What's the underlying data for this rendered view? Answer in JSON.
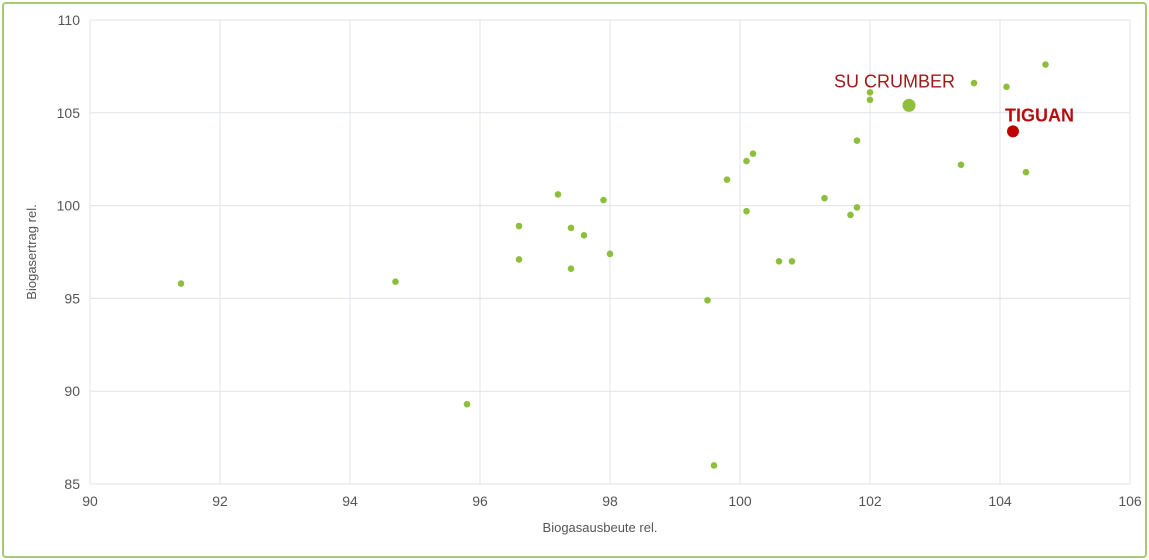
{
  "chart_data": {
    "type": "scatter",
    "title": "",
    "xlabel": "Biogasausbeute rel.",
    "ylabel": "Biogasertrag rel.",
    "xlim": [
      90,
      106
    ],
    "ylim": [
      85,
      110
    ],
    "xticks": [
      "90",
      "92",
      "94",
      "96",
      "98",
      "100",
      "102",
      "104",
      "106"
    ],
    "yticks": [
      "85",
      "90",
      "95",
      "100",
      "105",
      "110"
    ],
    "grid": true,
    "colors": {
      "points": "#8dbf3c",
      "highlight": "#c00000",
      "grid": "#dfe3e8",
      "frame": "#a6c877"
    },
    "series": [
      {
        "points": [
          [
            91.4,
            95.8
          ],
          [
            94.7,
            95.9
          ],
          [
            95.8,
            89.3
          ],
          [
            96.6,
            98.9
          ],
          [
            96.6,
            97.1
          ],
          [
            97.2,
            100.6
          ],
          [
            97.4,
            98.8
          ],
          [
            97.4,
            96.6
          ],
          [
            97.6,
            98.4
          ],
          [
            97.9,
            100.3
          ],
          [
            98.0,
            97.4
          ],
          [
            99.5,
            94.9
          ],
          [
            99.6,
            86.0
          ],
          [
            99.8,
            101.4
          ],
          [
            100.1,
            102.4
          ],
          [
            100.1,
            99.7
          ],
          [
            100.2,
            102.8
          ],
          [
            100.6,
            97.0
          ],
          [
            100.8,
            97.0
          ],
          [
            101.3,
            100.4
          ],
          [
            101.7,
            99.5
          ],
          [
            101.8,
            99.9
          ],
          [
            101.8,
            103.5
          ],
          [
            102.0,
            105.7
          ],
          [
            102.0,
            106.1
          ],
          [
            103.4,
            102.2
          ],
          [
            103.6,
            106.6
          ],
          [
            104.1,
            106.4
          ],
          [
            104.4,
            101.8
          ],
          [
            104.7,
            107.6
          ]
        ]
      }
    ],
    "highlights": [
      {
        "label": "SU CRUMBER",
        "x": 102.6,
        "y": 105.4,
        "color": "#8dbf3c",
        "style": "normal"
      },
      {
        "label": "TIGUAN",
        "x": 104.2,
        "y": 104.0,
        "color": "#c00000",
        "style": "bold"
      }
    ]
  }
}
